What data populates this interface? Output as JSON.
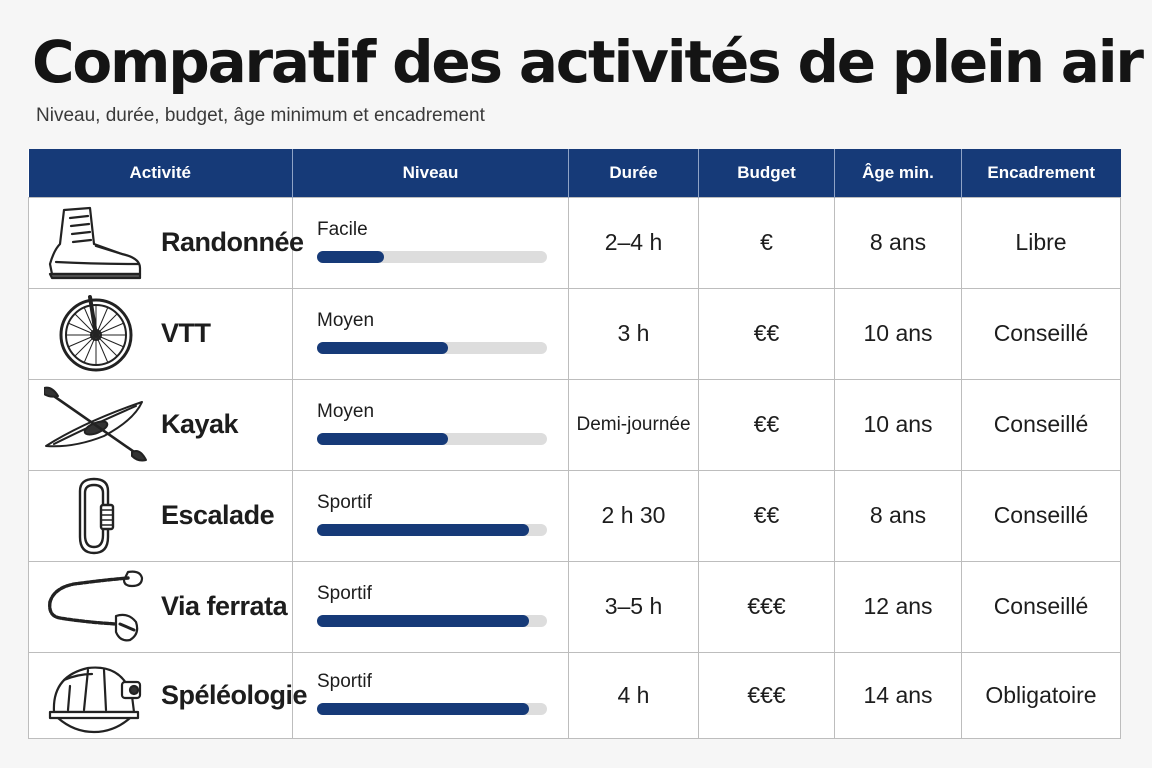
{
  "title": "Comparatif des activités de plein air",
  "subtitle": "Niveau, durée, budget, âge minimum et encadrement",
  "headers": [
    "Activité",
    "Niveau",
    "Durée",
    "Budget",
    "Âge min.",
    "Encadrement"
  ],
  "rows": [
    {
      "icon": "hiking-boot-icon",
      "activity": "Randonnée",
      "level": "Facile",
      "level_fraction": 0.29,
      "duration": "2–4 h",
      "budget": "€",
      "min_age": "8 ans",
      "supervision": "Libre"
    },
    {
      "icon": "bicycle-wheel-icon",
      "activity": "VTT",
      "level": "Moyen",
      "level_fraction": 0.57,
      "duration": "3 h",
      "budget": "€€",
      "min_age": "10 ans",
      "supervision": "Conseillé"
    },
    {
      "icon": "kayak-icon",
      "activity": "Kayak",
      "level": "Moyen",
      "level_fraction": 0.57,
      "duration": "Demi-journée",
      "budget": "€€",
      "min_age": "10 ans",
      "supervision": "Conseillé"
    },
    {
      "icon": "carabiner-icon",
      "activity": "Escalade",
      "level": "Sportif",
      "level_fraction": 0.92,
      "duration": "2 h 30",
      "budget": "€€",
      "min_age": "8 ans",
      "supervision": "Conseillé"
    },
    {
      "icon": "via-ferrata-lanyard-icon",
      "activity": "Via ferrata",
      "level": "Sportif",
      "level_fraction": 0.92,
      "duration": "3–5 h",
      "budget": "€€€",
      "min_age": "12 ans",
      "supervision": "Conseillé"
    },
    {
      "icon": "caving-helmet-icon",
      "activity": "Spéléologie",
      "level": "Sportif",
      "level_fraction": 0.92,
      "duration": "4 h",
      "budget": "€€€",
      "min_age": "14 ans",
      "supervision": "Obligatoire"
    }
  ],
  "colors": {
    "header_bg": "#163a78",
    "bar_fill": "#163a78",
    "bar_track": "#dddddd"
  }
}
